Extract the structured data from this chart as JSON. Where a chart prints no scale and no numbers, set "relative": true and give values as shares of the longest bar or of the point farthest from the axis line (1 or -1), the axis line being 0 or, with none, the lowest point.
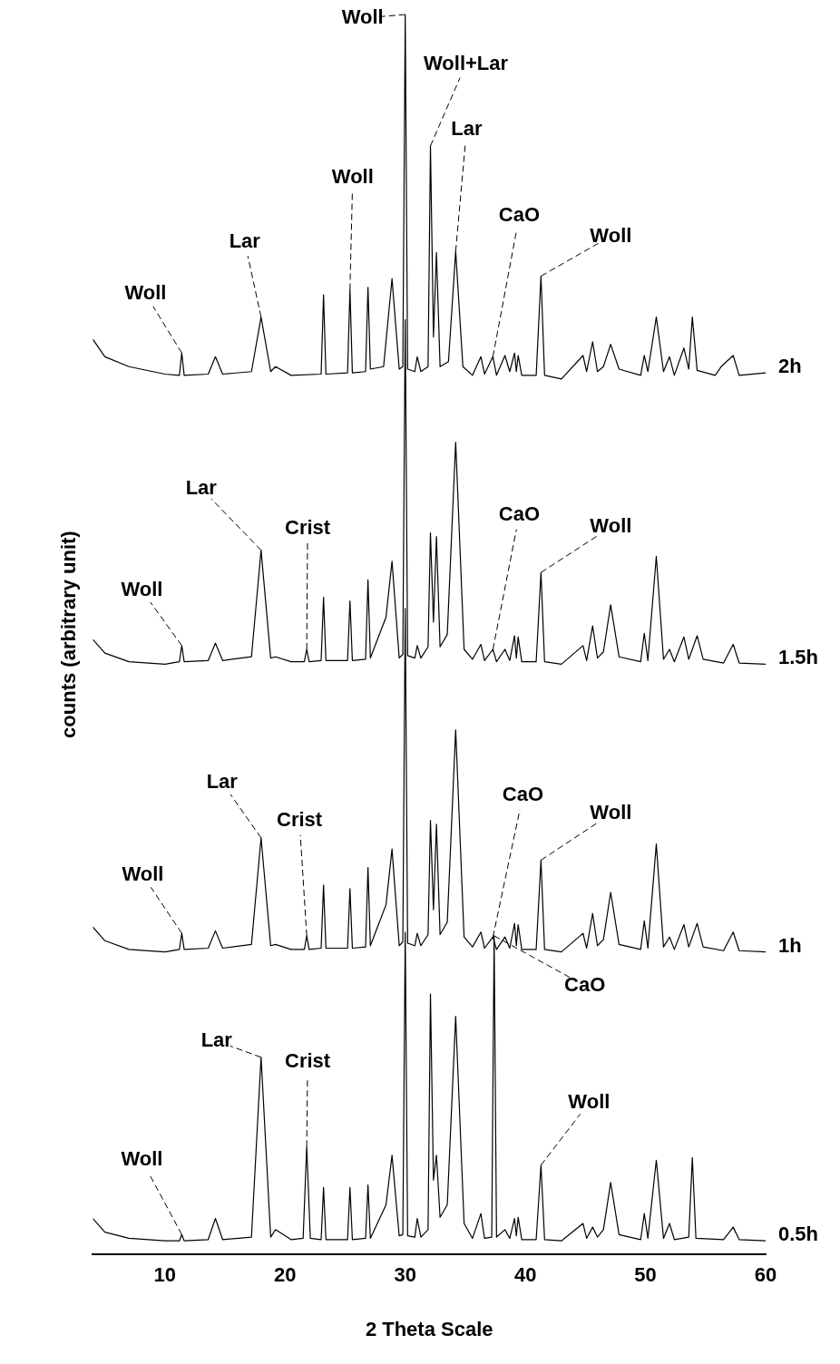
{
  "chart_data": {
    "type": "line",
    "relative": true,
    "xlabel": "2 Theta Scale",
    "ylabel": "counts (arbitrary unit)",
    "xlim": [
      4,
      60
    ],
    "xticks": [
      10,
      20,
      30,
      40,
      50,
      60
    ],
    "grid": false,
    "legend": false,
    "marker": "none",
    "line_style": "solid",
    "series": [
      {
        "name": "2h",
        "color": "#000000",
        "x": [
          4,
          5,
          7,
          10,
          11.2,
          11.4,
          11.6,
          13.6,
          14.2,
          14.8,
          17.2,
          18.0,
          18.8,
          19.2,
          20.5,
          23.0,
          23.2,
          23.4,
          25.2,
          25.4,
          25.6,
          26.7,
          26.9,
          27.1,
          28.2,
          28.9,
          29.5,
          29.8,
          30.0,
          30.2,
          30.8,
          31.0,
          31.3,
          31.9,
          32.1,
          32.35,
          32.6,
          32.9,
          33.6,
          34.2,
          34.8,
          35.6,
          36.3,
          36.6,
          37.3,
          37.6,
          38.3,
          38.7,
          39.1,
          39.25,
          39.4,
          39.7,
          40.9,
          41.3,
          41.6,
          43.0,
          44.8,
          45.1,
          45.6,
          46.0,
          46.5,
          47.1,
          47.8,
          49.6,
          49.9,
          50.2,
          50.9,
          51.5,
          52.0,
          52.4,
          53.2,
          53.6,
          53.9,
          54.3,
          55.8,
          56.3,
          57.3,
          57.8,
          60
        ],
        "values": [
          0.738,
          0.724,
          0.716,
          0.71,
          0.709,
          0.727,
          0.709,
          0.71,
          0.724,
          0.71,
          0.712,
          0.756,
          0.712,
          0.716,
          0.709,
          0.71,
          0.774,
          0.71,
          0.711,
          0.778,
          0.711,
          0.712,
          0.78,
          0.714,
          0.716,
          0.787,
          0.714,
          0.716,
          1.0,
          0.714,
          0.712,
          0.724,
          0.712,
          0.716,
          0.894,
          0.74,
          0.808,
          0.716,
          0.72,
          0.809,
          0.716,
          0.709,
          0.724,
          0.71,
          0.724,
          0.709,
          0.725,
          0.712,
          0.727,
          0.712,
          0.725,
          0.709,
          0.709,
          0.789,
          0.709,
          0.706,
          0.725,
          0.712,
          0.736,
          0.712,
          0.716,
          0.734,
          0.714,
          0.709,
          0.725,
          0.712,
          0.756,
          0.712,
          0.724,
          0.709,
          0.731,
          0.714,
          0.756,
          0.713,
          0.709,
          0.716,
          0.725,
          0.709,
          0.711
        ]
      },
      {
        "name": "1.5h",
        "color": "#000000",
        "x": [
          4,
          5,
          7,
          10,
          11.2,
          11.4,
          11.6,
          13.6,
          14.2,
          14.8,
          17.2,
          18.0,
          18.8,
          19.2,
          20.5,
          21.6,
          21.8,
          22.0,
          23.0,
          23.2,
          23.4,
          25.2,
          25.4,
          25.6,
          26.7,
          26.9,
          27.1,
          28.4,
          28.9,
          29.5,
          29.8,
          30.0,
          30.2,
          30.8,
          31.0,
          31.3,
          31.9,
          32.1,
          32.35,
          32.6,
          32.9,
          33.5,
          34.2,
          34.9,
          35.6,
          36.3,
          36.6,
          37.3,
          37.6,
          38.3,
          38.7,
          39.1,
          39.25,
          39.4,
          39.7,
          40.9,
          41.3,
          41.6,
          43.0,
          44.8,
          45.1,
          45.6,
          46.0,
          46.5,
          47.1,
          47.8,
          49.6,
          49.9,
          50.2,
          50.9,
          51.5,
          52.0,
          52.4,
          53.2,
          53.6,
          54.3,
          54.8,
          56.5,
          57.3,
          57.8,
          60
        ],
        "values": [
          0.496,
          0.485,
          0.478,
          0.476,
          0.478,
          0.491,
          0.478,
          0.479,
          0.493,
          0.479,
          0.482,
          0.568,
          0.481,
          0.482,
          0.478,
          0.478,
          0.488,
          0.478,
          0.479,
          0.53,
          0.479,
          0.479,
          0.527,
          0.479,
          0.48,
          0.544,
          0.481,
          0.514,
          0.559,
          0.481,
          0.484,
          0.754,
          0.483,
          0.481,
          0.491,
          0.481,
          0.49,
          0.582,
          0.51,
          0.579,
          0.49,
          0.5,
          0.655,
          0.488,
          0.48,
          0.492,
          0.479,
          0.488,
          0.478,
          0.488,
          0.479,
          0.499,
          0.481,
          0.498,
          0.478,
          0.478,
          0.55,
          0.478,
          0.476,
          0.491,
          0.479,
          0.507,
          0.481,
          0.486,
          0.524,
          0.482,
          0.478,
          0.501,
          0.479,
          0.563,
          0.48,
          0.488,
          0.478,
          0.498,
          0.48,
          0.499,
          0.48,
          0.477,
          0.492,
          0.477,
          0.476
        ]
      },
      {
        "name": "1h",
        "color": "#000000",
        "x": [
          4,
          5,
          7,
          10,
          11.2,
          11.4,
          11.6,
          13.6,
          14.2,
          14.8,
          17.2,
          18.0,
          18.8,
          19.2,
          20.5,
          21.6,
          21.8,
          22.0,
          23.0,
          23.2,
          23.4,
          25.2,
          25.4,
          25.6,
          26.7,
          26.9,
          27.1,
          28.4,
          28.9,
          29.5,
          29.8,
          30.0,
          30.2,
          30.8,
          31.0,
          31.3,
          31.9,
          32.1,
          32.35,
          32.6,
          32.9,
          33.5,
          34.2,
          34.9,
          35.6,
          36.3,
          36.6,
          37.3,
          37.6,
          38.3,
          38.7,
          39.1,
          39.25,
          39.4,
          39.7,
          40.9,
          41.3,
          41.6,
          43.0,
          44.8,
          45.1,
          45.6,
          46.0,
          46.5,
          47.1,
          47.8,
          49.6,
          49.9,
          50.2,
          50.9,
          51.5,
          52.0,
          52.4,
          53.2,
          53.6,
          54.3,
          54.8,
          56.5,
          57.3,
          57.8,
          60
        ],
        "values": [
          0.264,
          0.253,
          0.246,
          0.244,
          0.246,
          0.259,
          0.246,
          0.247,
          0.261,
          0.247,
          0.25,
          0.336,
          0.249,
          0.25,
          0.246,
          0.246,
          0.257,
          0.246,
          0.247,
          0.298,
          0.247,
          0.247,
          0.295,
          0.247,
          0.248,
          0.312,
          0.249,
          0.282,
          0.327,
          0.249,
          0.252,
          0.521,
          0.251,
          0.249,
          0.259,
          0.249,
          0.258,
          0.35,
          0.278,
          0.347,
          0.258,
          0.268,
          0.423,
          0.256,
          0.248,
          0.26,
          0.247,
          0.256,
          0.246,
          0.256,
          0.247,
          0.267,
          0.249,
          0.266,
          0.246,
          0.246,
          0.318,
          0.246,
          0.244,
          0.259,
          0.247,
          0.275,
          0.249,
          0.254,
          0.292,
          0.25,
          0.246,
          0.269,
          0.247,
          0.331,
          0.248,
          0.256,
          0.246,
          0.266,
          0.248,
          0.267,
          0.248,
          0.245,
          0.26,
          0.245,
          0.244
        ]
      },
      {
        "name": "0.5h",
        "color": "#000000",
        "x": [
          4,
          5,
          7,
          10,
          11.2,
          11.4,
          11.6,
          13.6,
          14.2,
          14.8,
          17.2,
          18.0,
          18.8,
          19.2,
          20.5,
          21.5,
          21.8,
          22.1,
          23.0,
          23.2,
          23.4,
          25.2,
          25.4,
          25.6,
          26.7,
          26.9,
          27.1,
          28.4,
          28.9,
          29.5,
          29.8,
          30.0,
          30.2,
          30.8,
          31.0,
          31.3,
          31.9,
          32.1,
          32.35,
          32.6,
          32.9,
          33.5,
          34.2,
          34.9,
          35.6,
          36.3,
          36.6,
          37.2,
          37.4,
          37.6,
          38.3,
          38.7,
          39.1,
          39.25,
          39.4,
          39.7,
          40.9,
          41.3,
          41.6,
          43.0,
          44.8,
          45.1,
          45.6,
          46.0,
          46.5,
          47.1,
          47.8,
          49.6,
          49.9,
          50.2,
          50.9,
          51.5,
          52.0,
          52.4,
          53.6,
          53.9,
          54.2,
          56.5,
          57.3,
          57.8,
          60
        ],
        "values": [
          0.029,
          0.018,
          0.013,
          0.011,
          0.011,
          0.016,
          0.011,
          0.012,
          0.029,
          0.012,
          0.014,
          0.159,
          0.014,
          0.02,
          0.012,
          0.013,
          0.087,
          0.013,
          0.012,
          0.054,
          0.012,
          0.012,
          0.054,
          0.012,
          0.013,
          0.056,
          0.013,
          0.04,
          0.08,
          0.015,
          0.016,
          0.26,
          0.015,
          0.014,
          0.029,
          0.014,
          0.02,
          0.21,
          0.06,
          0.08,
          0.03,
          0.04,
          0.192,
          0.025,
          0.013,
          0.033,
          0.013,
          0.014,
          0.257,
          0.014,
          0.02,
          0.013,
          0.029,
          0.015,
          0.03,
          0.012,
          0.012,
          0.072,
          0.012,
          0.011,
          0.025,
          0.013,
          0.022,
          0.014,
          0.02,
          0.058,
          0.016,
          0.012,
          0.033,
          0.013,
          0.076,
          0.013,
          0.025,
          0.012,
          0.014,
          0.078,
          0.013,
          0.012,
          0.022,
          0.012,
          0.011
        ]
      }
    ],
    "annotations": [
      {
        "text": "Woll",
        "x": 11.4,
        "y": 0.727
      },
      {
        "text": "Lar",
        "x": 18.0,
        "y": 0.756
      },
      {
        "text": "Woll",
        "x": 25.4,
        "y": 0.778
      },
      {
        "text": "Woll",
        "x": 30.0,
        "y": 1.0
      },
      {
        "text": "Woll+Lar",
        "x": 32.1,
        "y": 0.894
      },
      {
        "text": "Lar",
        "x": 34.2,
        "y": 0.809
      },
      {
        "text": "CaO",
        "x": 37.3,
        "y": 0.724
      },
      {
        "text": "Woll",
        "x": 41.3,
        "y": 0.789
      },
      {
        "text": "Woll",
        "x": 11.4,
        "y": 0.491
      },
      {
        "text": "Lar",
        "x": 18.0,
        "y": 0.568
      },
      {
        "text": "Crist",
        "x": 21.8,
        "y": 0.488
      },
      {
        "text": "CaO",
        "x": 37.3,
        "y": 0.488
      },
      {
        "text": "Woll",
        "x": 41.3,
        "y": 0.55
      },
      {
        "text": "Woll",
        "x": 11.4,
        "y": 0.259
      },
      {
        "text": "Lar",
        "x": 18.0,
        "y": 0.336
      },
      {
        "text": "Crist",
        "x": 21.8,
        "y": 0.257
      },
      {
        "text": "CaO",
        "x": 37.3,
        "y": 0.256
      },
      {
        "text": "Woll",
        "x": 41.3,
        "y": 0.318
      },
      {
        "text": "Woll",
        "x": 11.4,
        "y": 0.016
      },
      {
        "text": "Lar",
        "x": 18.0,
        "y": 0.159
      },
      {
        "text": "Crist",
        "x": 21.8,
        "y": 0.087
      },
      {
        "text": "Woll",
        "x": 41.3,
        "y": 0.072
      },
      {
        "text": "CaO",
        "x": 37.4,
        "y": 0.257
      }
    ]
  }
}
